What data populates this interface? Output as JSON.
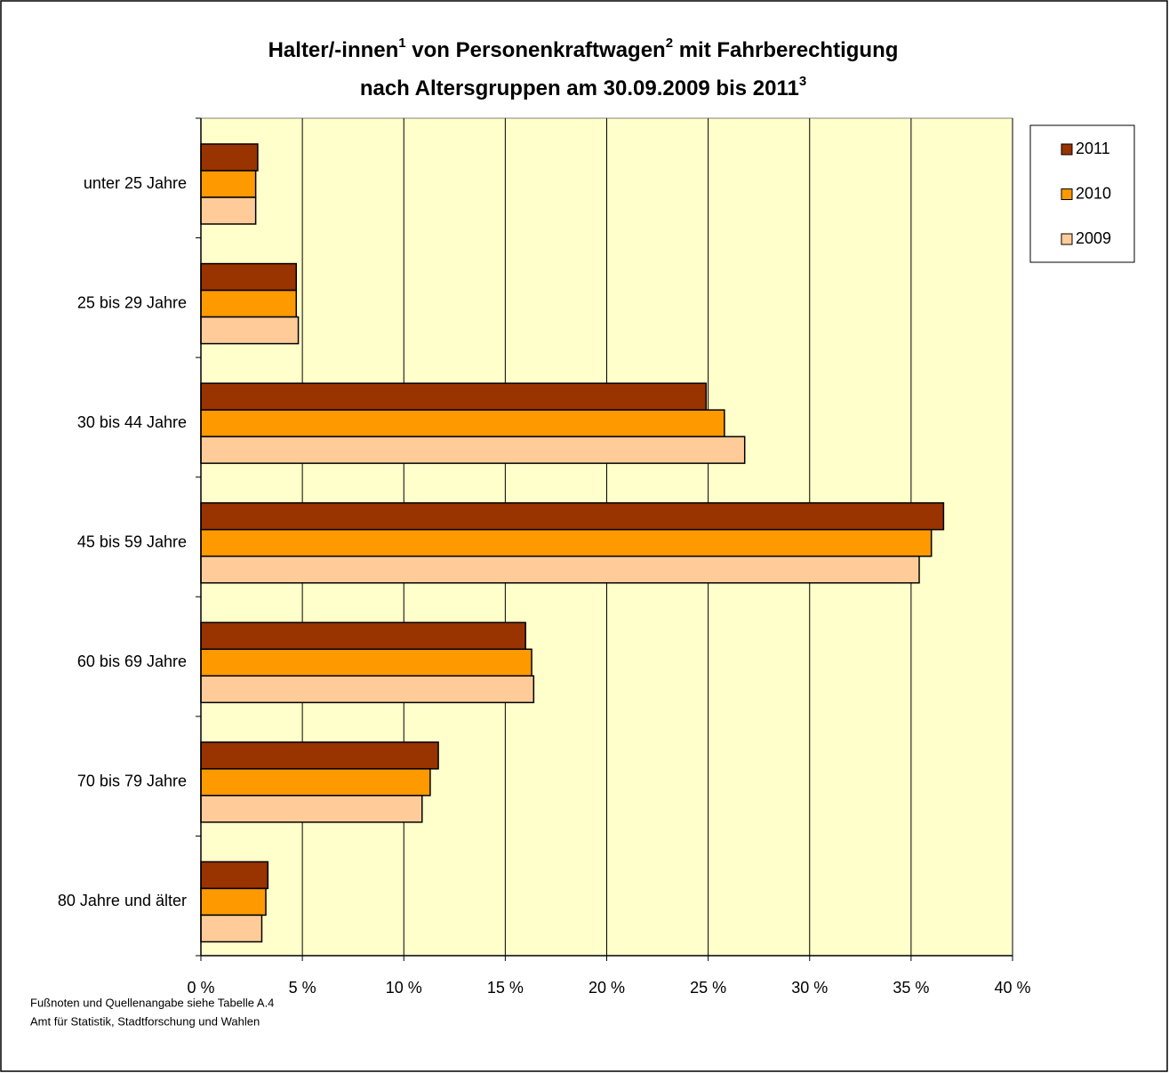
{
  "chart_data": {
    "type": "hbar",
    "title": [
      [
        "Halter/-innen",
        "1",
        " von Personenkraftwagen",
        "2",
        " mit Fahrberechtigung"
      ],
      [
        "nach Altersgruppen am 30.09.2009 bis 2011",
        "3"
      ]
    ],
    "categories": [
      "unter 25 Jahre",
      "25 bis 29 Jahre",
      "30 bis 44 Jahre",
      "45 bis 59 Jahre",
      "60 bis 69 Jahre",
      "70 bis 79 Jahre",
      "80 Jahre und älter"
    ],
    "series": [
      {
        "name": "2011",
        "color": "#993300",
        "values": [
          2.8,
          4.7,
          24.9,
          36.6,
          16.0,
          11.7,
          3.3
        ]
      },
      {
        "name": "2010",
        "color": "#ff9900",
        "values": [
          2.7,
          4.7,
          25.8,
          36.0,
          16.3,
          11.3,
          3.2
        ]
      },
      {
        "name": "2009",
        "color": "#ffcc99",
        "values": [
          2.7,
          4.8,
          26.8,
          35.4,
          16.4,
          10.9,
          3.0
        ]
      }
    ],
    "xlim": [
      0,
      40
    ],
    "xticks": [
      {
        "value": 0,
        "label": "0 %"
      },
      {
        "value": 5,
        "label": "5 %"
      },
      {
        "value": 10,
        "label": "10 %"
      },
      {
        "value": 15,
        "label": "15 %"
      },
      {
        "value": 20,
        "label": "20 %"
      },
      {
        "value": 25,
        "label": "25 %"
      },
      {
        "value": 30,
        "label": "30 %"
      },
      {
        "value": 35,
        "label": "35 %"
      },
      {
        "value": 40,
        "label": "40 %"
      }
    ],
    "grid": true,
    "legend": "right",
    "plot_background": "#ffffcc",
    "notes": [
      "Fußnoten und Quellenangabe siehe Tabelle A.4",
      "Amt für Statistik, Stadtforschung und Wahlen"
    ]
  }
}
